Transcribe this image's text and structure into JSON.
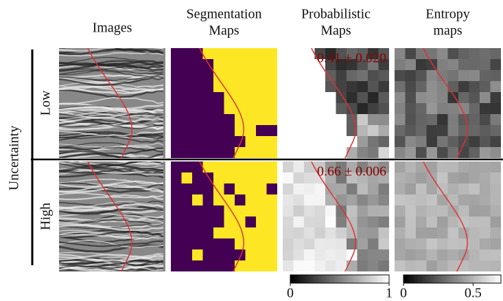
{
  "columns": [
    [
      "Images"
    ],
    [
      "Segmentation",
      "Maps"
    ],
    [
      "Probabilistic",
      "Maps"
    ],
    [
      "Entropy",
      "maps"
    ]
  ],
  "row_group": "Uncertainty",
  "rows": [
    "Low",
    "High"
  ],
  "annotations": [
    "0.41 ± 0.020",
    "0.66 ± 0.006"
  ],
  "colorbars": [
    {
      "lim": [
        0,
        1
      ],
      "ticks": [
        0,
        1
      ]
    },
    {
      "lim": [
        0,
        0.7
      ],
      "ticks": [
        0,
        0.5
      ]
    }
  ]
}
